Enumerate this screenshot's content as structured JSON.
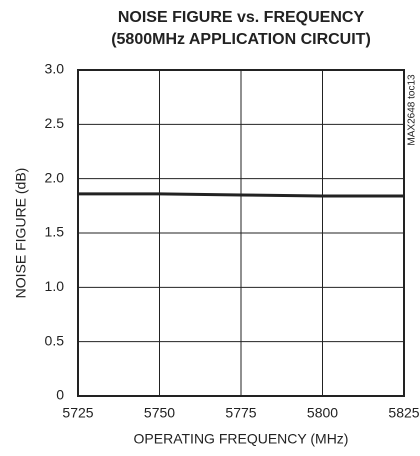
{
  "chart_data": {
    "type": "line",
    "title": "NOISE FIGURE vs. FREQUENCY",
    "subtitle": "(5800MHz APPLICATION CIRCUIT)",
    "x_label": "OPERATING FREQUENCY (MHz)",
    "y_label": "NOISE FIGURE (dB)",
    "annotation": "MAX2648 toc13",
    "x": [
      5725,
      5750,
      5775,
      5800,
      5825
    ],
    "values": [
      1.86,
      1.86,
      1.85,
      1.84,
      1.84
    ],
    "color": "#222222",
    "xlim": [
      5725,
      5825
    ],
    "xticks": [
      5725,
      5750,
      5775,
      5800,
      5825
    ],
    "ylim": [
      0,
      3
    ],
    "yticks": [
      0,
      {
        "value": 0.5,
        "label": "0.5"
      },
      {
        "value": 1,
        "label": "1.0"
      },
      {
        "value": 1.5,
        "label": "1.5"
      },
      {
        "value": 2,
        "label": "2.0"
      },
      {
        "value": 2.5,
        "label": "2.5"
      },
      {
        "value": 3,
        "label": "3.0"
      }
    ],
    "grid": true
  }
}
